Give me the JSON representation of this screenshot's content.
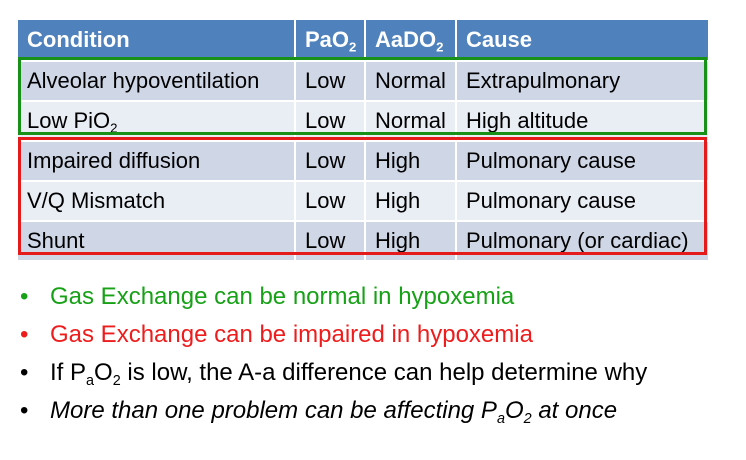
{
  "table": {
    "headers": {
      "condition": "Condition",
      "pao2_base": "PaO",
      "pao2_sub": "2",
      "aado2_base": "AaDO",
      "aado2_sub": "2",
      "cause": "Cause"
    },
    "rows": [
      {
        "condition": "Alveolar hypoventilation",
        "pao2": "Low",
        "aado2": "Normal",
        "cause": "Extrapulmonary"
      },
      {
        "condition_base": "Low PiO",
        "condition_sub": "2",
        "pao2": "Low",
        "aado2": "Normal",
        "cause": "High altitude"
      },
      {
        "condition": "Impaired diffusion",
        "pao2": "Low",
        "aado2": "High",
        "cause": "Pulmonary cause"
      },
      {
        "condition": "V/Q Mismatch",
        "pao2": "Low",
        "aado2": "High",
        "cause": "Pulmonary cause"
      },
      {
        "condition": "Shunt",
        "pao2": "Low",
        "aado2": "High",
        "cause": "Pulmonary (or cardiac)"
      }
    ]
  },
  "bullets": {
    "b1": "Gas Exchange can be normal in hypoxemia",
    "b2": "Gas Exchange can be impaired in hypoxemia",
    "b3": {
      "p1": "If P",
      "s1": "a",
      "p2": "O",
      "s2": "2",
      "p3": " is low, the A-a difference can help determine why"
    },
    "b4": {
      "p1": "More than one problem can be affecting P",
      "s1": "a",
      "p2": "O",
      "s2": "2",
      "p3": " at once"
    },
    "marker": "•"
  },
  "colors": {
    "header": "#4f81bd",
    "green": "#17a117",
    "red": "#ee1c1c",
    "row_dark": "#cfd7e7",
    "row_light": "#e9edf4"
  }
}
